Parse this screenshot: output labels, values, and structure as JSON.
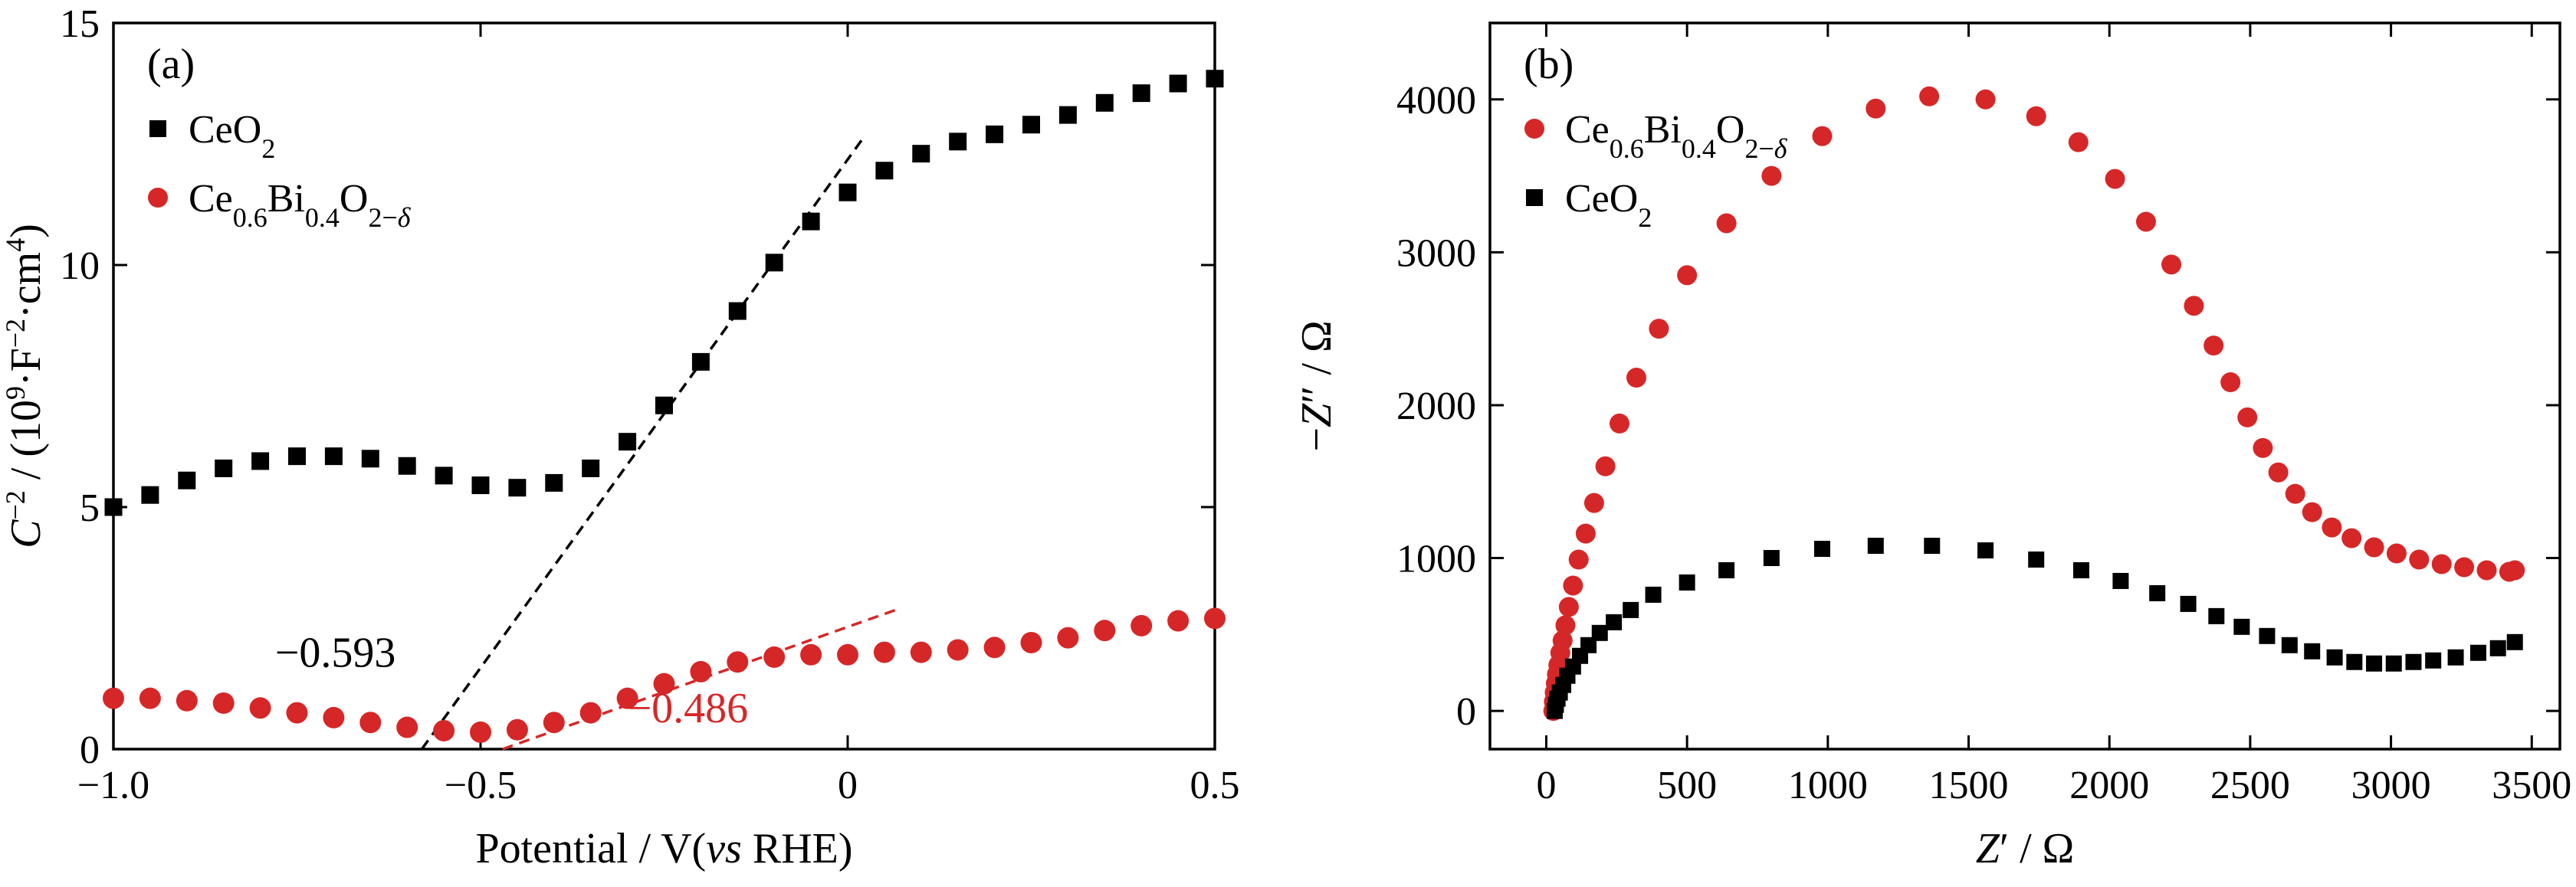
{
  "chart_data": [
    {
      "panel": "(a)",
      "type": "scatter",
      "xlabel": "Potential / V(vs RHE)",
      "xlabel_parts": [
        "Potential / V(",
        "vs",
        " RHE)"
      ],
      "ylabel": "C−2 / (109·F−2·cm4)",
      "xlim": [
        -1.0,
        0.5
      ],
      "ylim": [
        0,
        15
      ],
      "x_ticks": [
        -1.0,
        -0.5,
        0,
        0.5
      ],
      "x_tick_labels": [
        "−1.0",
        "−0.5",
        "0",
        "0.5"
      ],
      "y_ticks": [
        0,
        5,
        10,
        15
      ],
      "y_tick_labels": [
        "0",
        "5",
        "10",
        "15"
      ],
      "grid": false,
      "legend_position": "top-left",
      "series": [
        {
          "name": "CeO2",
          "name_base": "CeO",
          "name_sub": "2",
          "marker": "square",
          "color": "#000000",
          "x": [
            -1.0,
            -0.95,
            -0.9,
            -0.85,
            -0.8,
            -0.75,
            -0.7,
            -0.65,
            -0.6,
            -0.55,
            -0.5,
            -0.45,
            -0.4,
            -0.35,
            -0.3,
            -0.25,
            -0.2,
            -0.15,
            -0.1,
            -0.05,
            0.0,
            0.05,
            0.1,
            0.15,
            0.2,
            0.25,
            0.3,
            0.35,
            0.4,
            0.45,
            0.5
          ],
          "y": [
            5.0,
            5.25,
            5.55,
            5.8,
            5.95,
            6.05,
            6.05,
            6.0,
            5.85,
            5.65,
            5.45,
            5.4,
            5.5,
            5.8,
            6.35,
            7.1,
            8.0,
            9.05,
            10.05,
            10.9,
            11.5,
            11.95,
            12.3,
            12.55,
            12.7,
            12.9,
            13.1,
            13.35,
            13.55,
            13.75,
            13.85
          ]
        },
        {
          "name": "Ce0.6Bi0.4O2−δ",
          "marker": "circle",
          "color": "#d62728",
          "x": [
            -1.0,
            -0.95,
            -0.9,
            -0.85,
            -0.8,
            -0.75,
            -0.7,
            -0.65,
            -0.6,
            -0.55,
            -0.5,
            -0.45,
            -0.4,
            -0.35,
            -0.3,
            -0.25,
            -0.2,
            -0.15,
            -0.1,
            -0.05,
            0.0,
            0.05,
            0.1,
            0.15,
            0.2,
            0.25,
            0.3,
            0.35,
            0.4,
            0.45,
            0.5
          ],
          "y": [
            1.05,
            1.05,
            1.0,
            0.95,
            0.85,
            0.75,
            0.65,
            0.55,
            0.45,
            0.38,
            0.35,
            0.4,
            0.55,
            0.75,
            1.05,
            1.35,
            1.6,
            1.8,
            1.9,
            1.95,
            1.95,
            2.0,
            2.0,
            2.05,
            2.1,
            2.2,
            2.3,
            2.45,
            2.55,
            2.65,
            2.7
          ]
        }
      ],
      "fit_lines": [
        {
          "color": "#000000",
          "x": [
            -0.58,
            0.02
          ],
          "y": [
            0.0,
            12.6
          ]
        },
        {
          "color": "#d62728",
          "x": [
            -0.47,
            0.07
          ],
          "y": [
            0.0,
            2.9
          ]
        }
      ],
      "annotations": [
        {
          "text": "−0.593",
          "color": "#000000",
          "x": -0.78,
          "y": 1.7
        },
        {
          "text": "−0.486",
          "color": "#d62728",
          "x": -0.3,
          "y": 0.55
        }
      ]
    },
    {
      "panel": "(b)",
      "type": "scatter",
      "xlabel": "Z′ / Ω",
      "ylabel": "−Z″ / Ω",
      "xlim": [
        -200,
        3600
      ],
      "ylim": [
        -250,
        4500
      ],
      "x_ticks": [
        0,
        500,
        1000,
        1500,
        2000,
        2500,
        3000,
        3500
      ],
      "x_tick_labels": [
        "0",
        "500",
        "1000",
        "1500",
        "2000",
        "2500",
        "3000",
        "3500"
      ],
      "y_ticks": [
        0,
        1000,
        2000,
        3000,
        4000
      ],
      "y_tick_labels": [
        "0",
        "1000",
        "2000",
        "3000",
        "4000"
      ],
      "grid": false,
      "legend_position": "top-left",
      "series": [
        {
          "name": "Ce0.6Bi0.4O2−δ",
          "marker": "circle",
          "color": "#d62728",
          "x": [
            25,
            27,
            30,
            34,
            38,
            43,
            50,
            58,
            68,
            80,
            95,
            115,
            140,
            170,
            210,
            260,
            320,
            400,
            500,
            640,
            800,
            980,
            1170,
            1360,
            1560,
            1740,
            1890,
            2020,
            2130,
            2220,
            2300,
            2370,
            2430,
            2490,
            2545,
            2600,
            2660,
            2720,
            2790,
            2860,
            2940,
            3020,
            3100,
            3180,
            3260,
            3340,
            3420,
            3440
          ],
          "y": [
            0,
            60,
            120,
            180,
            240,
            300,
            380,
            460,
            560,
            680,
            820,
            990,
            1160,
            1360,
            1600,
            1880,
            2180,
            2500,
            2850,
            3190,
            3500,
            3760,
            3940,
            4020,
            4000,
            3890,
            3720,
            3480,
            3200,
            2920,
            2650,
            2390,
            2150,
            1920,
            1720,
            1560,
            1420,
            1300,
            1200,
            1130,
            1070,
            1030,
            990,
            960,
            940,
            920,
            910,
            920
          ]
        },
        {
          "name": "CeO2",
          "name_base": "CeO",
          "name_sub": "2",
          "marker": "square",
          "color": "#000000",
          "x": [
            30,
            34,
            40,
            48,
            60,
            75,
            95,
            120,
            150,
            190,
            240,
            300,
            380,
            500,
            640,
            800,
            980,
            1170,
            1370,
            1560,
            1740,
            1900,
            2040,
            2170,
            2280,
            2380,
            2470,
            2560,
            2640,
            2720,
            2800,
            2870,
            2940,
            3010,
            3080,
            3150,
            3230,
            3310,
            3380,
            3440
          ],
          "y": [
            0,
            40,
            80,
            120,
            170,
            230,
            290,
            360,
            430,
            510,
            580,
            660,
            760,
            840,
            920,
            1000,
            1060,
            1080,
            1080,
            1050,
            990,
            920,
            850,
            770,
            700,
            620,
            550,
            490,
            430,
            390,
            350,
            320,
            310,
            310,
            320,
            330,
            350,
            380,
            410,
            450
          ]
        }
      ]
    }
  ]
}
